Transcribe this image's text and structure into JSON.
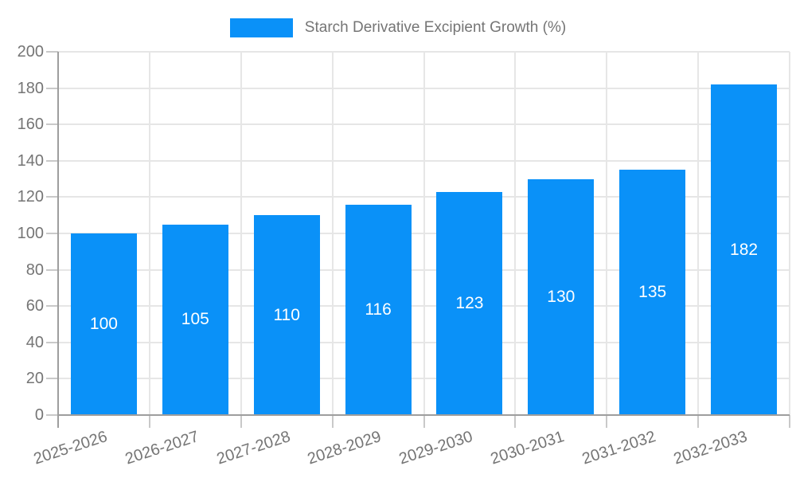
{
  "chart_data": {
    "type": "bar",
    "title": "Starch Derivative Excipient Growth (%)",
    "categories": [
      "2025-2026",
      "2026-2027",
      "2027-2028",
      "2028-2029",
      "2029-2030",
      "2030-2031",
      "2031-2032",
      "2032-2033"
    ],
    "values": [
      100,
      105,
      110,
      116,
      123,
      130,
      135,
      182
    ],
    "xlabel": "",
    "ylabel": "",
    "ylim": [
      0,
      200
    ],
    "ytick_step": 20,
    "grid": true,
    "legend_position": "top-center",
    "value_labels": "centered-inside-bars",
    "x_label_rotation_deg": -18,
    "colors": {
      "bar": "#0a91f8",
      "value_label": "#ffffff",
      "axis": "#9e9e9e",
      "grid": "#e6e6e6",
      "tick": "#c9c9c9",
      "text": "#757575",
      "background": "#ffffff"
    }
  },
  "legend": {
    "items": [
      {
        "label": "Starch Derivative Excipient Growth (%)",
        "swatch_color": "#0a91f8"
      }
    ]
  }
}
